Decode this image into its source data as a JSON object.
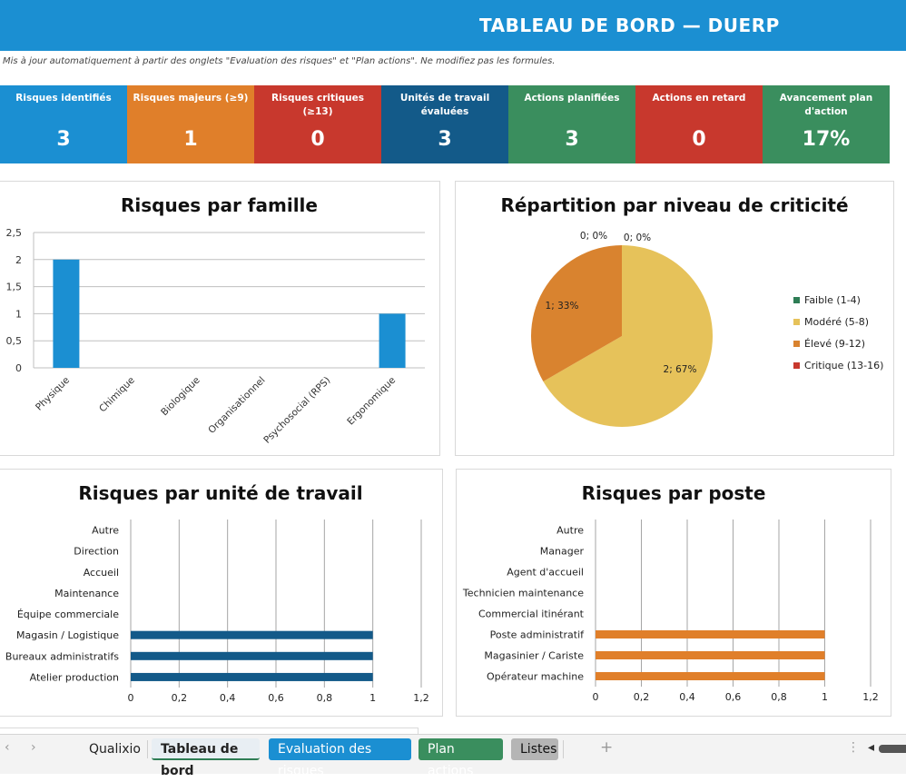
{
  "header": {
    "title": "TABLEAU DE BORD — DUERP",
    "subtitle": "Mis à jour automatiquement à partir des onglets \"Evaluation des risques\" et \"Plan actions\". Ne modifiez pas les formules."
  },
  "kpis": [
    {
      "label": "Risques identifiés",
      "value": "3",
      "color": "#1b8fd2"
    },
    {
      "label": "Risques majeurs (≥9)",
      "value": "1",
      "color": "#e07f2a"
    },
    {
      "label": "Risques critiques (≥13)",
      "value": "0",
      "color": "#c8382d"
    },
    {
      "label": "Unités de travail évaluées",
      "value": "3",
      "color": "#135a89"
    },
    {
      "label": "Actions planifiées",
      "value": "3",
      "color": "#3a8e5e"
    },
    {
      "label": "Actions en retard",
      "value": "0",
      "color": "#c8382d"
    },
    {
      "label": "Avancement plan d'action",
      "value": "17%",
      "color": "#3a8e5e"
    }
  ],
  "chart_data": [
    {
      "type": "bar",
      "title": "Risques par famille",
      "categories": [
        "Physique",
        "Chimique",
        "Biologique",
        "Organisationnel",
        "Psychosocial (RPS)",
        "Ergonomique"
      ],
      "values": [
        2,
        0,
        0,
        0,
        0,
        1
      ],
      "y_ticks": [
        "0",
        "0,5",
        "1",
        "1,5",
        "2",
        "2,5"
      ],
      "ylim": [
        0,
        2.5
      ],
      "grid": true,
      "color": "#1b8fd2"
    },
    {
      "type": "pie",
      "title": "Répartition par niveau de criticité",
      "slices": [
        {
          "label": "Faible (1-4)",
          "value": 0,
          "data_label": "0; 0%",
          "color": "#2e7d55"
        },
        {
          "label": "Modéré (5-8)",
          "value": 2,
          "data_label": "2; 67%",
          "color": "#e6c25a"
        },
        {
          "label": "Élevé (9-12)",
          "value": 1,
          "data_label": "1; 33%",
          "color": "#d9832f"
        },
        {
          "label": "Critique (13-16)",
          "value": 0,
          "data_label": "0; 0%",
          "color": "#c8382d"
        }
      ],
      "legend_position": "right"
    },
    {
      "type": "bar",
      "orientation": "horizontal",
      "title": "Risques par unité de travail",
      "categories": [
        "Autre",
        "Direction",
        "Accueil",
        "Maintenance",
        "Équipe commerciale",
        "Magasin / Logistique",
        "Bureaux administratifs",
        "Atelier production"
      ],
      "values": [
        0,
        0,
        0,
        0,
        0,
        1,
        1,
        1
      ],
      "x_ticks": [
        "0",
        "0,2",
        "0,4",
        "0,6",
        "0,8",
        "1",
        "1,2"
      ],
      "xlim": [
        0,
        1.2
      ],
      "grid": true,
      "color": "#135a89"
    },
    {
      "type": "bar",
      "orientation": "horizontal",
      "title": "Risques par poste",
      "categories": [
        "Autre",
        "Manager",
        "Agent d'accueil",
        "Technicien maintenance",
        "Commercial itinérant",
        "Poste administratif",
        "Magasinier / Cariste",
        "Opérateur machine"
      ],
      "values": [
        0,
        0,
        0,
        0,
        0,
        1,
        1,
        1
      ],
      "x_ticks": [
        "0",
        "0,2",
        "0,4",
        "0,6",
        "0,8",
        "1",
        "1,2"
      ],
      "xlim": [
        0,
        1.2
      ],
      "grid": true,
      "color": "#e07f2a"
    }
  ],
  "tabs": {
    "items": [
      {
        "label": "Qualixio",
        "bg": "transparent",
        "fg": "#222222",
        "active": false
      },
      {
        "label": "Tableau de bord",
        "bg": "#e8eef3",
        "fg": "#111111",
        "active": true
      },
      {
        "label": "Evaluation des risques",
        "bg": "#1b8fd2",
        "fg": "#ffffff",
        "active": false
      },
      {
        "label": "Plan actions",
        "bg": "#3a8e5e",
        "fg": "#ffffff",
        "active": false
      },
      {
        "label": "Listes",
        "bg": "#b5b5b5",
        "fg": "#111111",
        "active": false
      }
    ],
    "add_label": "+",
    "prev_label": "‹",
    "next_label": "›",
    "more_label": "⋮",
    "scroll_label": "◂"
  }
}
